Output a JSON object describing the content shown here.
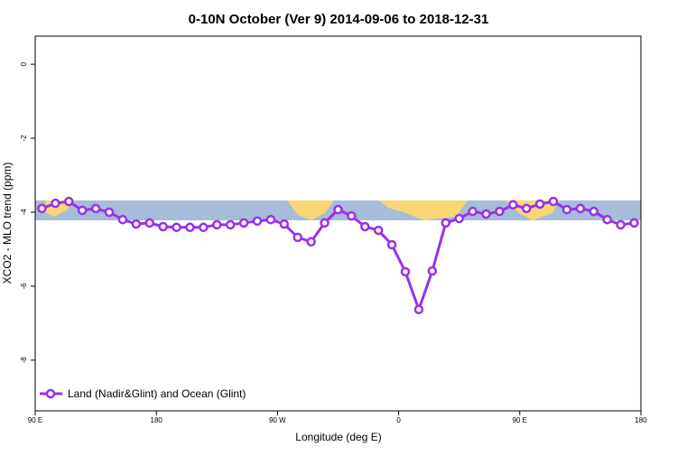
{
  "chart_data": {
    "type": "line",
    "title": "0-10N October (Ver 9)   2014-09-06 to 2018-12-31",
    "x_label": "Longitude (deg E)",
    "y_label": "XCO2 - MLO trend (ppm)",
    "x": [
      95,
      105,
      115,
      125,
      135,
      145,
      155,
      165,
      175,
      185,
      195,
      205,
      215,
      225,
      235,
      245,
      255,
      265,
      275,
      285,
      295,
      305,
      315,
      325,
      335,
      345,
      355,
      365,
      375,
      385,
      395,
      405,
      415,
      425,
      435,
      445,
      455,
      465,
      475,
      485,
      495,
      505,
      515,
      525,
      535
    ],
    "series": [
      {
        "name": "Land (Nadir&Glint) and Ocean (Glint)",
        "color": "#9b30e8",
        "values": [
          -3.9,
          -3.76,
          -3.71,
          -3.95,
          -3.9,
          -4.0,
          -4.2,
          -4.32,
          -4.29,
          -4.39,
          -4.41,
          -4.41,
          -4.41,
          -4.34,
          -4.34,
          -4.29,
          -4.24,
          -4.2,
          -4.32,
          -4.68,
          -4.8,
          -4.29,
          -3.93,
          -4.1,
          -4.39,
          -4.49,
          -4.88,
          -5.61,
          -6.63,
          -5.59,
          -4.29,
          -4.17,
          -3.98,
          -4.05,
          -3.98,
          -3.8,
          -3.9,
          -3.78,
          -3.71,
          -3.93,
          -3.9,
          -3.98,
          -4.2,
          -4.34,
          -4.29
        ]
      }
    ],
    "xlim": [
      90,
      540
    ],
    "xticks": [
      {
        "value": 90,
        "label": "90 E"
      },
      180,
      {
        "value": 270,
        "label": "90 W"
      },
      {
        "value": 360,
        "label": "0"
      },
      {
        "value": 450,
        "label": "90 E"
      },
      {
        "value": 540,
        "label": "180"
      }
    ],
    "ylim": [
      -9.37,
      0.76
    ],
    "yticks": [
      0,
      -2,
      -4,
      -6,
      -8
    ],
    "legend": "bottom-left"
  }
}
